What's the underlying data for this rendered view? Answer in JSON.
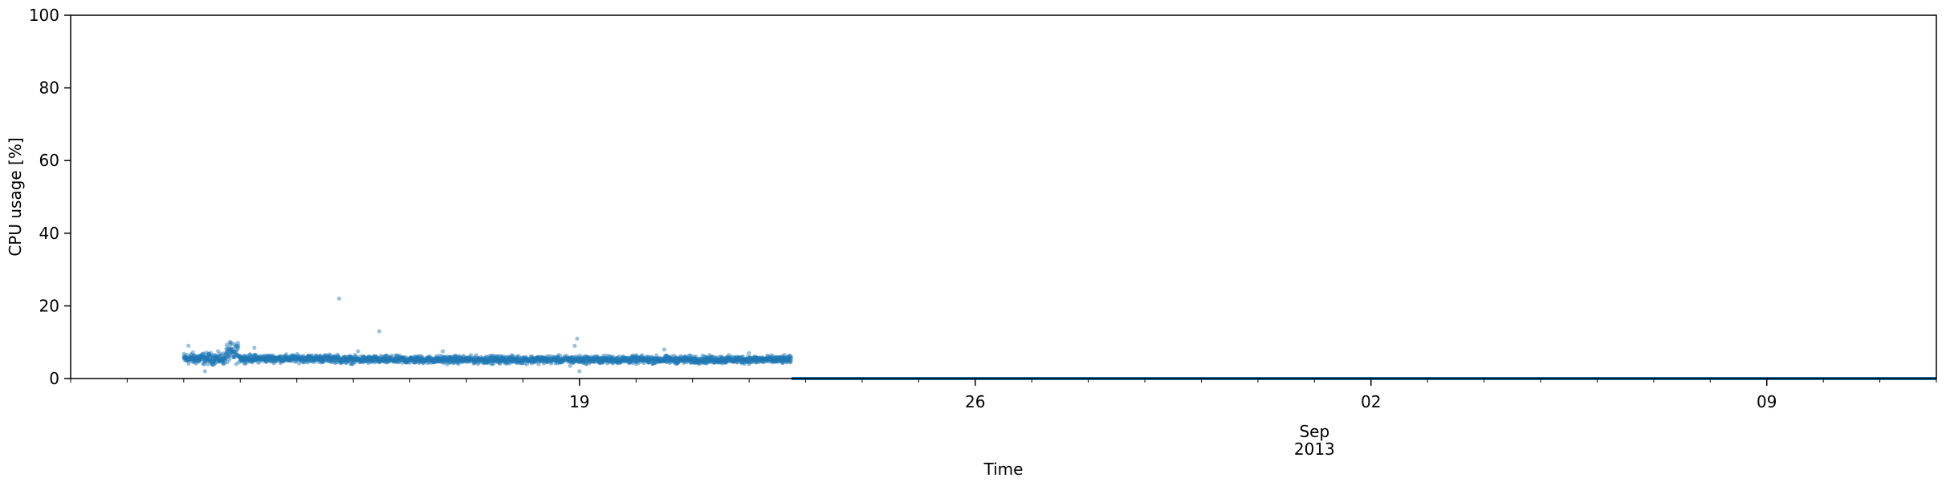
{
  "chart_data": {
    "type": "scatter",
    "title": "",
    "xlabel": "Time",
    "ylabel": "CPU usage [%]",
    "ylim": [
      0,
      100
    ],
    "xlim": [
      "2013-08-10",
      "2013-09-12"
    ],
    "y_ticks": [
      0,
      20,
      40,
      60,
      80,
      100
    ],
    "x_major_ticks": [
      {
        "date": "2013-08-19",
        "label": "19"
      },
      {
        "date": "2013-08-26",
        "label": "26"
      },
      {
        "date": "2013-09-02",
        "label": "02"
      },
      {
        "date": "2013-09-09",
        "label": "09"
      }
    ],
    "x_secondary_label": "Sep\n2013",
    "x_secondary_label_date": "2013-09-01",
    "grid": false,
    "marker_color": "#1f77b4",
    "series": [
      {
        "segments": [
          {
            "start": "2013-08-12",
            "end": "2013-08-12T18:00",
            "level": 5.5,
            "spread": 1.5
          },
          {
            "start": "2013-08-12T18:00",
            "end": "2013-08-13",
            "level": 7.0,
            "spread": 2.5
          },
          {
            "start": "2013-08-13",
            "end": "2013-08-14T18:00",
            "level": 5.5,
            "spread": 1.0
          },
          {
            "start": "2013-08-14T18:00",
            "end": "2013-08-22T18:00",
            "level": 5.2,
            "spread": 1.0
          }
        ],
        "outliers": [
          {
            "x": "2013-08-12T02:00",
            "y": 9.0
          },
          {
            "x": "2013-08-12T09:00",
            "y": 2.0
          },
          {
            "x": "2013-08-12T20:00",
            "y": 10.0
          },
          {
            "x": "2013-08-13T06:00",
            "y": 8.5
          },
          {
            "x": "2013-08-14T18:00",
            "y": 22.0
          },
          {
            "x": "2013-08-15T11:00",
            "y": 13.0
          },
          {
            "x": "2013-08-15T02:00",
            "y": 7.5
          },
          {
            "x": "2013-08-18T20:00",
            "y": 3.5
          },
          {
            "x": "2013-08-18T23:00",
            "y": 11.0
          },
          {
            "x": "2013-08-18T22:00",
            "y": 9.0
          },
          {
            "x": "2013-08-19T00:00",
            "y": 2.0
          },
          {
            "x": "2013-08-20T12:00",
            "y": 8.0
          },
          {
            "x": "2013-08-16T14:00",
            "y": 7.5
          },
          {
            "x": "2013-08-22T00:00",
            "y": 7.0
          }
        ],
        "zero_line": {
          "start": "2013-08-22T18:00",
          "end": "2013-09-12",
          "value": 0
        }
      }
    ]
  }
}
